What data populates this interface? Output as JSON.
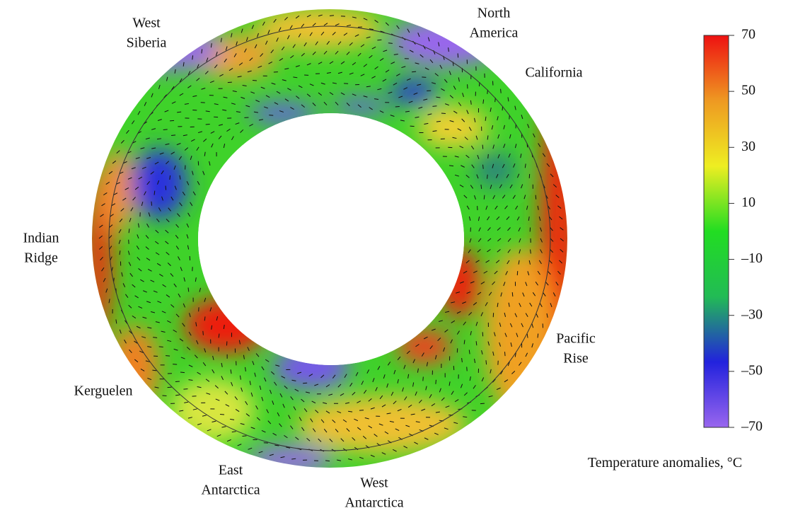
{
  "chart_data": {
    "type": "annulus-map",
    "annotations": [
      {
        "lines": [
          "West",
          "Siberia"
        ]
      },
      {
        "lines": [
          "North",
          "America"
        ]
      },
      {
        "lines": [
          "California"
        ]
      },
      {
        "lines": [
          "Indian",
          "Ridge"
        ]
      },
      {
        "lines": [
          "Pacific",
          "Rise"
        ]
      },
      {
        "lines": [
          "Kerguelen"
        ]
      },
      {
        "lines": [
          "East",
          "Antarctica"
        ]
      },
      {
        "lines": [
          "West",
          "Antarctica"
        ]
      }
    ],
    "colorbar": {
      "label": "Temperature anomalies, °C",
      "zlim": [
        -70,
        70
      ],
      "zticks": [
        70,
        50,
        30,
        10,
        {
          "value": -10,
          "label": "–10"
        },
        {
          "value": -30,
          "label": "–30"
        },
        {
          "value": -50,
          "label": "–50"
        },
        {
          "value": -70,
          "label": "–70"
        }
      ],
      "colors": [
        "#9966ee",
        "#2222dd",
        "#22bb55",
        "#22dd22",
        "#eeee22",
        "#ee9922",
        "#ee1111"
      ]
    }
  }
}
